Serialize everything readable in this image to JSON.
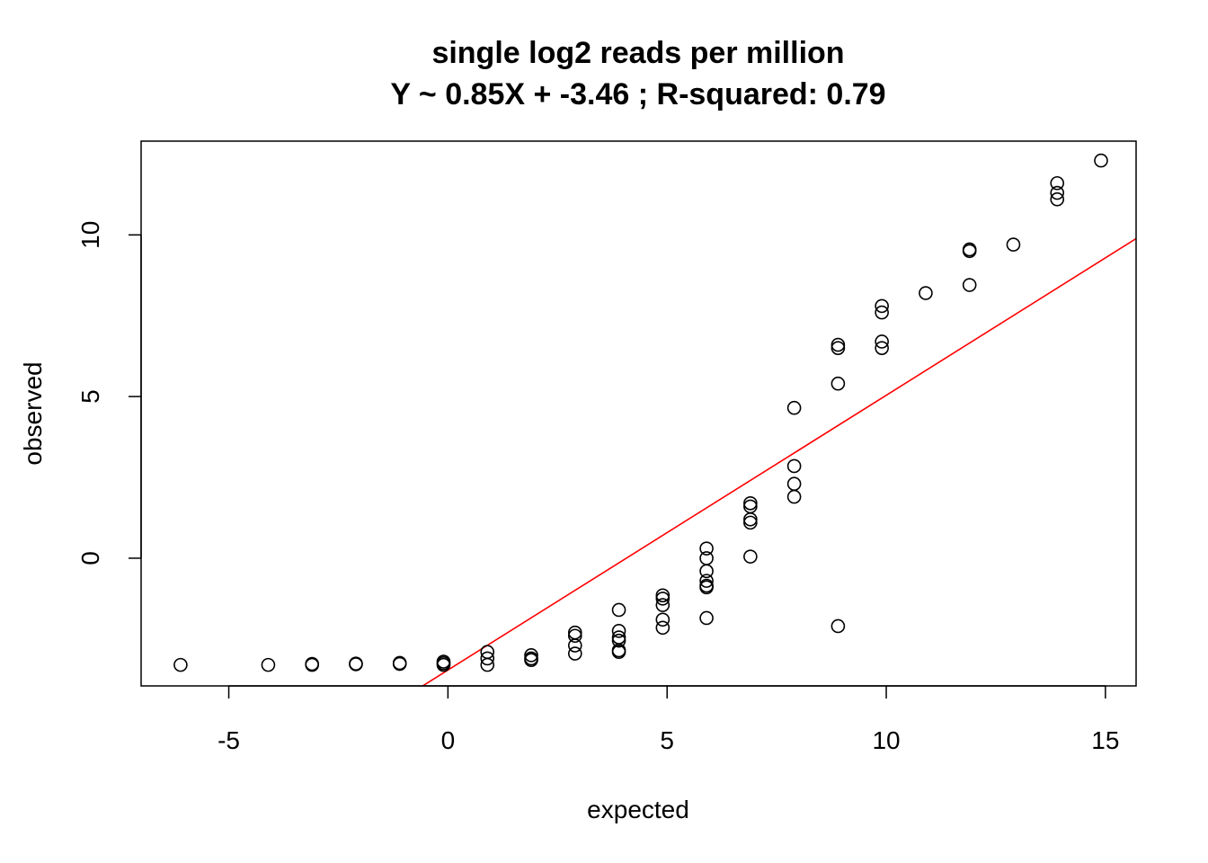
{
  "chart_data": {
    "type": "scatter",
    "title": "single log2 reads per million",
    "subtitle": "Y ~ 0.85X + -3.46 ; R-squared: 0.79",
    "xlabel": "expected",
    "ylabel": "observed",
    "xlim": [
      -7.0,
      15.7
    ],
    "ylim": [
      -3.95,
      12.9
    ],
    "x_ticks": [
      -5,
      0,
      5,
      10,
      15
    ],
    "x_tick_labels": [
      "-5",
      "0",
      "5",
      "10",
      "15"
    ],
    "y_ticks": [
      0,
      5,
      10
    ],
    "y_tick_labels": [
      "0",
      "5",
      "10"
    ],
    "grid": false,
    "legend": "none",
    "colors": {
      "points": "#000000",
      "fit_line": "#ff0000",
      "frame": "#000000"
    },
    "fit_line": {
      "slope": 0.85,
      "intercept": -3.46
    },
    "points": [
      {
        "x": -6.1,
        "y": -3.3
      },
      {
        "x": -4.1,
        "y": -3.3
      },
      {
        "x": -3.1,
        "y": -3.3
      },
      {
        "x": -3.1,
        "y": -3.27
      },
      {
        "x": -2.1,
        "y": -3.28
      },
      {
        "x": -2.1,
        "y": -3.26
      },
      {
        "x": -1.1,
        "y": -3.27
      },
      {
        "x": -1.1,
        "y": -3.24
      },
      {
        "x": -0.1,
        "y": -3.3
      },
      {
        "x": -0.1,
        "y": -3.25
      },
      {
        "x": -0.1,
        "y": -3.2
      },
      {
        "x": 0.9,
        "y": -2.9
      },
      {
        "x": 0.9,
        "y": -3.1
      },
      {
        "x": 0.9,
        "y": -3.3
      },
      {
        "x": 1.9,
        "y": -3.0
      },
      {
        "x": 1.9,
        "y": -3.1
      },
      {
        "x": 1.9,
        "y": -3.15
      },
      {
        "x": 2.9,
        "y": -2.3
      },
      {
        "x": 2.9,
        "y": -2.4
      },
      {
        "x": 2.9,
        "y": -2.7
      },
      {
        "x": 2.9,
        "y": -2.95
      },
      {
        "x": 3.9,
        "y": -1.6
      },
      {
        "x": 3.9,
        "y": -2.25
      },
      {
        "x": 3.9,
        "y": -2.45
      },
      {
        "x": 3.9,
        "y": -2.55
      },
      {
        "x": 3.9,
        "y": -2.85
      },
      {
        "x": 3.9,
        "y": -2.9
      },
      {
        "x": 4.9,
        "y": -1.15
      },
      {
        "x": 4.9,
        "y": -1.25
      },
      {
        "x": 4.9,
        "y": -1.45
      },
      {
        "x": 4.9,
        "y": -1.9
      },
      {
        "x": 4.9,
        "y": -2.15
      },
      {
        "x": 5.9,
        "y": 0.3
      },
      {
        "x": 5.9,
        "y": 0.0
      },
      {
        "x": 5.9,
        "y": -0.4
      },
      {
        "x": 5.9,
        "y": -0.7
      },
      {
        "x": 5.9,
        "y": -0.85
      },
      {
        "x": 5.9,
        "y": -0.9
      },
      {
        "x": 5.9,
        "y": -1.85
      },
      {
        "x": 6.9,
        "y": 1.7
      },
      {
        "x": 6.9,
        "y": 1.6
      },
      {
        "x": 6.9,
        "y": 1.2
      },
      {
        "x": 6.9,
        "y": 1.1
      },
      {
        "x": 6.9,
        "y": 0.05
      },
      {
        "x": 7.9,
        "y": 4.65
      },
      {
        "x": 7.9,
        "y": 2.85
      },
      {
        "x": 7.9,
        "y": 2.3
      },
      {
        "x": 7.9,
        "y": 1.9
      },
      {
        "x": 8.9,
        "y": 6.6
      },
      {
        "x": 8.9,
        "y": 6.5
      },
      {
        "x": 8.9,
        "y": 5.4
      },
      {
        "x": 8.9,
        "y": -2.1
      },
      {
        "x": 9.9,
        "y": 7.8
      },
      {
        "x": 9.9,
        "y": 7.6
      },
      {
        "x": 9.9,
        "y": 6.7
      },
      {
        "x": 9.9,
        "y": 6.5
      },
      {
        "x": 10.9,
        "y": 8.2
      },
      {
        "x": 11.9,
        "y": 9.55
      },
      {
        "x": 11.9,
        "y": 9.5
      },
      {
        "x": 11.9,
        "y": 8.45
      },
      {
        "x": 12.9,
        "y": 9.7
      },
      {
        "x": 13.9,
        "y": 11.6
      },
      {
        "x": 13.9,
        "y": 11.3
      },
      {
        "x": 13.9,
        "y": 11.1
      },
      {
        "x": 14.9,
        "y": 12.3
      }
    ]
  }
}
